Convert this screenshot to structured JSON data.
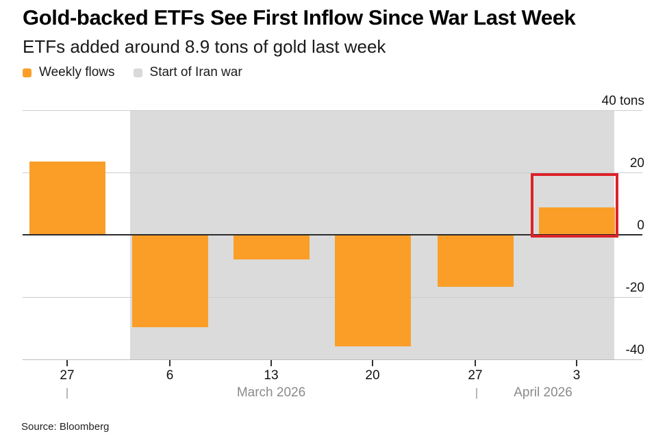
{
  "header": {
    "title": "Gold-backed ETFs See First Inflow Since War Last Week",
    "subtitle": "ETFs added around 8.9 tons of gold last week"
  },
  "legend": [
    {
      "label": "Weekly flows",
      "color": "#FA9E28"
    },
    {
      "label": "Start of Iran war",
      "color": "#D9D9D9"
    }
  ],
  "source": "Source: Bloomberg",
  "chart_data": {
    "type": "bar",
    "title": "Gold-backed ETFs See First Inflow Since War Last Week",
    "subtitle": "ETFs added around 8.9 tons of gold last week",
    "unit": "tons",
    "series_name": "Weekly flows",
    "bar_color": "#FA9E28",
    "categories": [
      "27",
      "6",
      "13",
      "20",
      "27",
      "3"
    ],
    "values": [
      23.5,
      -29.4,
      -7.6,
      -35.6,
      -16.4,
      8.9
    ],
    "ylim": [
      -40,
      40
    ],
    "yticks": [
      {
        "label": "40 tons",
        "value": 40
      },
      {
        "label": "20",
        "value": 20
      },
      {
        "label": "0",
        "value": 0
      },
      {
        "label": "-20",
        "value": -20
      },
      {
        "label": "-40",
        "value": -40
      }
    ],
    "x_axis": {
      "month_labels": [
        "March 2026",
        "April 2026"
      ],
      "separator_glyph": "|"
    },
    "grid": "horizontal",
    "legend_position": "top-left",
    "annotations": {
      "war_band": {
        "label": "Start of Iran war",
        "color": "#DBDBDB",
        "covers_categories": [
          "6",
          "13",
          "20",
          "27",
          "3"
        ],
        "note": "gray shaded region from just before March 6 to right edge of plot"
      },
      "highlight_box": {
        "color": "#DC2228",
        "highlights_category": "3",
        "highlighted_value": 8.9,
        "note": "red rectangle around last bar (first inflow since war)"
      }
    }
  }
}
